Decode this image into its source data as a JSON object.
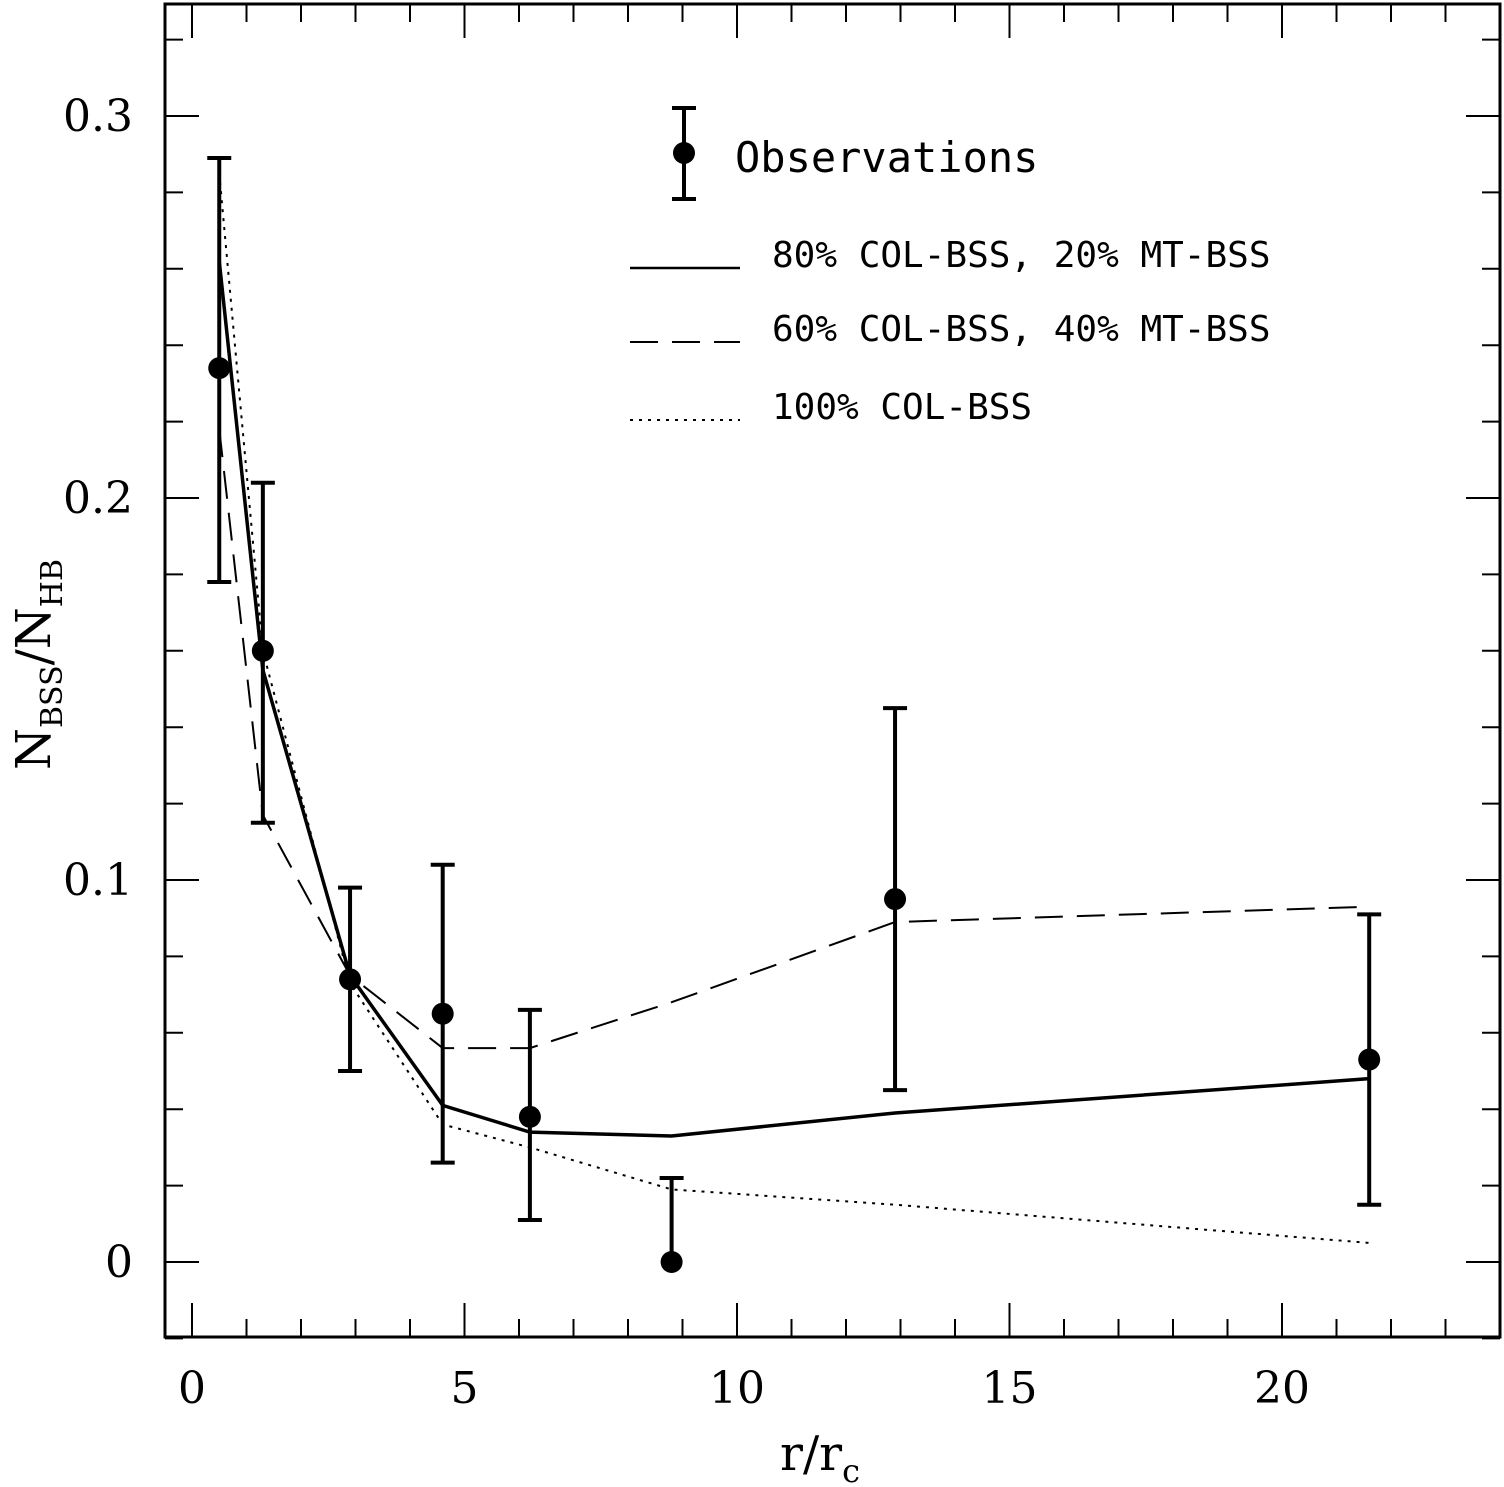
{
  "chart_data": {
    "type": "line",
    "xlabel": "r/r",
    "xlabel_sub": "c",
    "ylabel_main": "N",
    "ylabel_sub1": "BSS",
    "ylabel_sep": "/N",
    "ylabel_sub2": "HB",
    "xlim": [
      -0.5,
      24
    ],
    "ylim": [
      -0.02,
      0.33
    ],
    "xticks": [
      0,
      5,
      10,
      15,
      20
    ],
    "xtick_labels": [
      "0",
      "5",
      "10",
      "15",
      "20"
    ],
    "x_minor_step": 1,
    "yticks": [
      0,
      0.1,
      0.2,
      0.3
    ],
    "ytick_labels": [
      "0",
      "0.1",
      "0.2",
      "0.3"
    ],
    "y_minor_step": 0.02,
    "legend_position": "top-right",
    "observations": {
      "name": "Observations",
      "x": [
        0.5,
        1.3,
        2.9,
        4.6,
        6.2,
        8.8,
        12.9,
        21.6
      ],
      "y": [
        0.234,
        0.16,
        0.074,
        0.065,
        0.038,
        0.0,
        0.095,
        0.053
      ],
      "err_low": [
        0.178,
        0.115,
        0.05,
        0.026,
        0.011,
        0.0,
        0.045,
        0.015
      ],
      "err_high": [
        0.289,
        0.204,
        0.098,
        0.104,
        0.066,
        0.022,
        0.145,
        0.091
      ]
    },
    "series": [
      {
        "name": "80% COL-BSS, 20% MT-BSS",
        "style": "solid",
        "x": [
          0.5,
          1.3,
          2.9,
          4.6,
          6.2,
          8.8,
          12.9,
          21.6
        ],
        "y": [
          0.262,
          0.155,
          0.075,
          0.041,
          0.034,
          0.033,
          0.039,
          0.048
        ]
      },
      {
        "name": "60% COL-BSS, 40% MT-BSS",
        "style": "dashed",
        "x": [
          0.5,
          1.3,
          2.9,
          4.6,
          6.2,
          8.8,
          12.9,
          21.6
        ],
        "y": [
          0.218,
          0.117,
          0.075,
          0.056,
          0.056,
          0.068,
          0.089,
          0.093
        ]
      },
      {
        "name": "100% COL-BSS",
        "style": "dotted",
        "x": [
          0.5,
          1.3,
          2.9,
          4.6,
          6.2,
          8.8,
          12.9,
          21.6
        ],
        "y": [
          0.285,
          0.16,
          0.073,
          0.036,
          0.03,
          0.019,
          0.015,
          0.005
        ]
      }
    ]
  }
}
